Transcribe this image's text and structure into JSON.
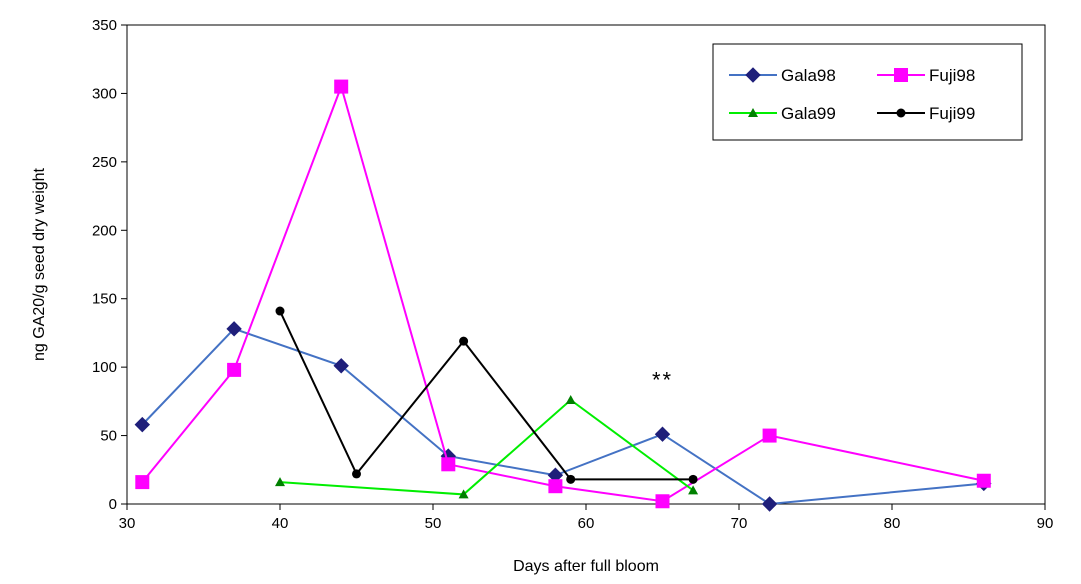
{
  "chart_data": {
    "type": "line",
    "title": "",
    "xlabel": "Days after full bloom",
    "ylabel": "ng GA20/g seed dry weight",
    "xlim": [
      30,
      90
    ],
    "ylim": [
      0,
      350
    ],
    "x_ticks": [
      30,
      40,
      50,
      60,
      70,
      80,
      90
    ],
    "y_ticks": [
      0,
      50,
      100,
      150,
      200,
      250,
      300,
      350
    ],
    "grid": false,
    "legend_position": "top-right",
    "annotations": [
      {
        "text": "**",
        "x": 65,
        "y": 85
      }
    ],
    "series": [
      {
        "name": "Gala98",
        "color": "#4472c4",
        "marker": "diamond",
        "marker_color": "#1f1f7a",
        "x": [
          31,
          37,
          44,
          51,
          58,
          65,
          72,
          86
        ],
        "y": [
          58,
          128,
          101,
          35,
          21,
          51,
          0,
          15
        ]
      },
      {
        "name": "Fuji98",
        "color": "#ff00ff",
        "marker": "square",
        "marker_color": "#ff00ff",
        "x": [
          31,
          37,
          44,
          51,
          58,
          65,
          72,
          86
        ],
        "y": [
          16,
          98,
          305,
          29,
          13,
          2,
          50,
          17
        ]
      },
      {
        "name": "Gala99",
        "color": "#00ee00",
        "marker": "triangle",
        "marker_color": "#008000",
        "x": [
          40,
          52,
          59,
          67
        ],
        "y": [
          16,
          7,
          76,
          10
        ]
      },
      {
        "name": "Fuji99",
        "color": "#000000",
        "marker": "circle",
        "marker_color": "#000000",
        "x": [
          40,
          45,
          52,
          59,
          67
        ],
        "y": [
          141,
          22,
          119,
          18,
          18
        ]
      }
    ]
  }
}
